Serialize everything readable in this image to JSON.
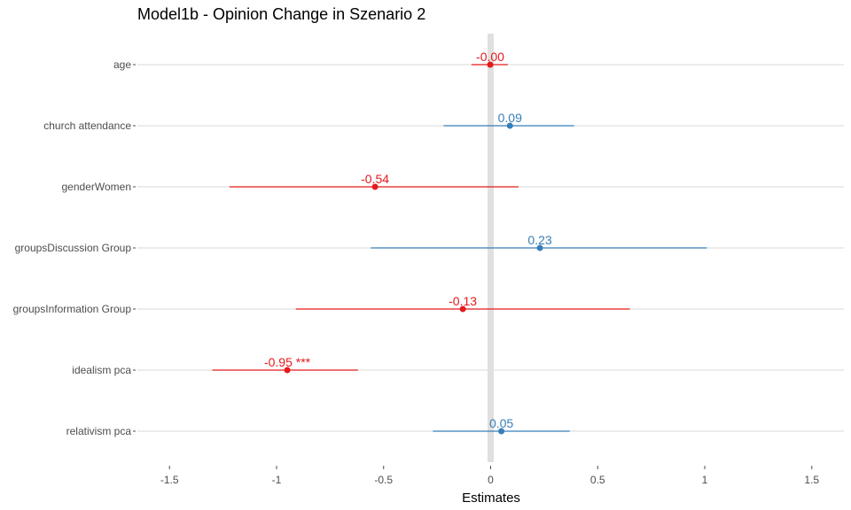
{
  "chart_data": {
    "type": "forest",
    "title": "Model1b - Opinion Change in Szenario 2",
    "xlabel": "Estimates",
    "xlim": [
      -1.65,
      1.65
    ],
    "xticks": [
      -1.5,
      -1,
      -0.5,
      0,
      0.5,
      1,
      1.5
    ],
    "xtick_labels": [
      "-1.5",
      "-1",
      "-0.5",
      "0",
      "0.5",
      "1",
      "1.5"
    ],
    "grid": "horizontal",
    "zero_line": 0,
    "colors": {
      "negative": "#e41a1c",
      "positive": "#377eb8",
      "zero_line": "#e0e0e0",
      "grid": "#d9d9d9"
    },
    "terms": [
      {
        "term": "age",
        "estimate": -0.002,
        "ci": [
          -0.09,
          0.08
        ],
        "label": "-0.00",
        "sign": "negative"
      },
      {
        "term": "church attendance",
        "estimate": 0.09,
        "ci": [
          -0.22,
          0.39
        ],
        "label": "0.09",
        "sign": "positive"
      },
      {
        "term": "genderWomen",
        "estimate": -0.54,
        "ci": [
          -1.22,
          0.13
        ],
        "label": "-0.54",
        "sign": "negative"
      },
      {
        "term": "groupsDiscussion Group",
        "estimate": 0.23,
        "ci": [
          -0.56,
          1.01
        ],
        "label": "0.23",
        "sign": "positive"
      },
      {
        "term": "groupsInformation Group",
        "estimate": -0.13,
        "ci": [
          -0.91,
          0.65
        ],
        "label": "-0.13",
        "sign": "negative"
      },
      {
        "term": "idealism pca",
        "estimate": -0.95,
        "ci": [
          -1.3,
          -0.62
        ],
        "label": "-0.95 ***",
        "sign": "negative"
      },
      {
        "term": "relativism pca",
        "estimate": 0.05,
        "ci": [
          -0.27,
          0.37
        ],
        "label": "0.05",
        "sign": "positive"
      }
    ]
  }
}
